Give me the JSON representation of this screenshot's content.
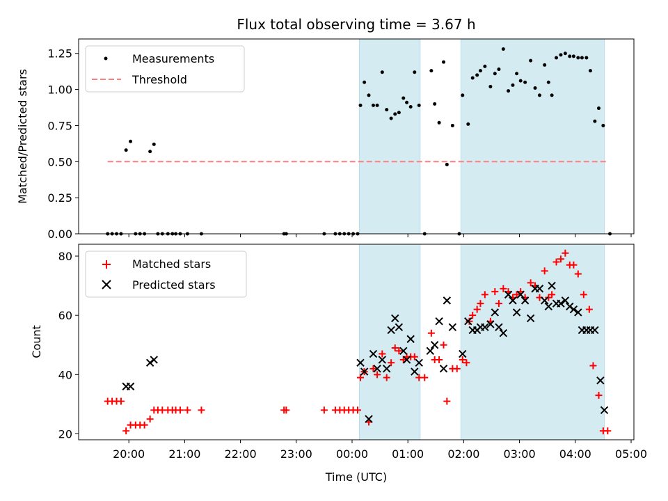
{
  "chart_data": {
    "type": "scatter",
    "title": "Flux total observing time = 3.67 h",
    "x_unit": "hours since 20:00 UTC",
    "xlim": [
      -0.9,
      9.05
    ],
    "xticks": [
      0,
      1,
      2,
      3,
      4,
      5,
      6,
      7,
      8,
      9
    ],
    "xtick_labels": [
      "20:00",
      "21:00",
      "22:00",
      "23:00",
      "00:00",
      "01:00",
      "02:00",
      "03:00",
      "04:00",
      "05:00"
    ],
    "xlabel": "Time (UTC)",
    "shaded_intervals": [
      [
        4.13,
        5.22
      ],
      [
        5.95,
        8.52
      ]
    ],
    "shade_color": "#add8e6",
    "panels": [
      {
        "name": "ratio",
        "ylabel": "Matched/Predicted stars",
        "ylim": [
          0,
          1.35
        ],
        "yticks": [
          0.0,
          0.25,
          0.5,
          0.75,
          1.0,
          1.25
        ],
        "ytick_labels": [
          "0.00",
          "0.25",
          "0.50",
          "0.75",
          "1.00",
          "1.25"
        ],
        "legend": [
          "Measurements",
          "Threshold"
        ],
        "threshold": {
          "value": 0.5,
          "x_range": [
            -0.38,
            8.55
          ],
          "color": "#ff7f7f"
        },
        "series": [
          {
            "name": "Measurements",
            "color": "#000000",
            "marker": "dot",
            "points": [
              [
                -0.38,
                0
              ],
              [
                -0.3,
                0
              ],
              [
                -0.22,
                0
              ],
              [
                -0.14,
                0
              ],
              [
                -0.05,
                0.58
              ],
              [
                0.03,
                0.64
              ],
              [
                0.12,
                0
              ],
              [
                0.2,
                0
              ],
              [
                0.28,
                0
              ],
              [
                0.38,
                0.57
              ],
              [
                0.45,
                0.62
              ],
              [
                0.52,
                0
              ],
              [
                0.6,
                0
              ],
              [
                0.7,
                0
              ],
              [
                0.78,
                0
              ],
              [
                0.84,
                0
              ],
              [
                0.92,
                0
              ],
              [
                1.05,
                0
              ],
              [
                1.3,
                0
              ],
              [
                2.78,
                0
              ],
              [
                2.82,
                0
              ],
              [
                3.5,
                0
              ],
              [
                3.7,
                0
              ],
              [
                3.78,
                0
              ],
              [
                3.86,
                0
              ],
              [
                3.94,
                0
              ],
              [
                4.02,
                0
              ],
              [
                4.1,
                0
              ],
              [
                4.15,
                0.89
              ],
              [
                4.22,
                1.05
              ],
              [
                4.3,
                0.96
              ],
              [
                4.38,
                0.89
              ],
              [
                4.45,
                0.89
              ],
              [
                4.54,
                1.12
              ],
              [
                4.62,
                0.86
              ],
              [
                4.7,
                0.8
              ],
              [
                4.77,
                0.83
              ],
              [
                4.84,
                0.84
              ],
              [
                4.92,
                0.94
              ],
              [
                4.98,
                0.91
              ],
              [
                5.05,
                0.88
              ],
              [
                5.12,
                1.12
              ],
              [
                5.2,
                0.89
              ],
              [
                5.3,
                0
              ],
              [
                5.42,
                1.13
              ],
              [
                5.48,
                0.9
              ],
              [
                5.56,
                0.77
              ],
              [
                5.64,
                1.19
              ],
              [
                5.7,
                0.48
              ],
              [
                5.8,
                0.75
              ],
              [
                5.92,
                0
              ],
              [
                5.98,
                0.96
              ],
              [
                6.08,
                0.76
              ],
              [
                6.16,
                1.08
              ],
              [
                6.24,
                1.1
              ],
              [
                6.3,
                1.13
              ],
              [
                6.38,
                1.16
              ],
              [
                6.48,
                1.02
              ],
              [
                6.56,
                1.11
              ],
              [
                6.63,
                1.14
              ],
              [
                6.71,
                1.28
              ],
              [
                6.8,
                0.99
              ],
              [
                6.88,
                1.03
              ],
              [
                6.95,
                1.11
              ],
              [
                7.02,
                1.06
              ],
              [
                7.1,
                1.05
              ],
              [
                7.2,
                1.2
              ],
              [
                7.28,
                1.01
              ],
              [
                7.36,
                0.96
              ],
              [
                7.45,
                1.17
              ],
              [
                7.52,
                1.05
              ],
              [
                7.58,
                0.96
              ],
              [
                7.66,
                1.22
              ],
              [
                7.74,
                1.24
              ],
              [
                7.82,
                1.25
              ],
              [
                7.9,
                1.23
              ],
              [
                7.97,
                1.23
              ],
              [
                8.05,
                1.22
              ],
              [
                8.12,
                1.22
              ],
              [
                8.2,
                1.22
              ],
              [
                8.27,
                1.13
              ],
              [
                8.35,
                0.78
              ],
              [
                8.42,
                0.87
              ],
              [
                8.5,
                0.75
              ],
              [
                8.62,
                0
              ]
            ]
          }
        ]
      },
      {
        "name": "count",
        "ylabel": "Count",
        "ylim": [
          18,
          84
        ],
        "yticks": [
          20,
          40,
          60,
          80
        ],
        "ytick_labels": [
          "20",
          "40",
          "60",
          "80"
        ],
        "legend": [
          "Matched stars",
          "Predicted stars"
        ],
        "series": [
          {
            "name": "Matched stars",
            "color": "#ff0000",
            "marker": "plus",
            "points": [
              [
                -0.38,
                31
              ],
              [
                -0.3,
                31
              ],
              [
                -0.22,
                31
              ],
              [
                -0.14,
                31
              ],
              [
                -0.05,
                21
              ],
              [
                0.03,
                23
              ],
              [
                0.12,
                23
              ],
              [
                0.2,
                23
              ],
              [
                0.28,
                23
              ],
              [
                0.38,
                25
              ],
              [
                0.45,
                28
              ],
              [
                0.52,
                28
              ],
              [
                0.6,
                28
              ],
              [
                0.7,
                28
              ],
              [
                0.78,
                28
              ],
              [
                0.84,
                28
              ],
              [
                0.92,
                28
              ],
              [
                1.05,
                28
              ],
              [
                1.3,
                28
              ],
              [
                2.78,
                28
              ],
              [
                2.82,
                28
              ],
              [
                3.5,
                28
              ],
              [
                3.7,
                28
              ],
              [
                3.78,
                28
              ],
              [
                3.86,
                28
              ],
              [
                3.94,
                28
              ],
              [
                4.02,
                28
              ],
              [
                4.1,
                28
              ],
              [
                4.15,
                39
              ],
              [
                4.22,
                41
              ],
              [
                4.3,
                24
              ],
              [
                4.38,
                42
              ],
              [
                4.45,
                40
              ],
              [
                4.54,
                47
              ],
              [
                4.62,
                39
              ],
              [
                4.7,
                44
              ],
              [
                4.77,
                49
              ],
              [
                4.84,
                48
              ],
              [
                4.92,
                45
              ],
              [
                4.98,
                46
              ],
              [
                5.05,
                46
              ],
              [
                5.12,
                46
              ],
              [
                5.2,
                39
              ],
              [
                5.3,
                39
              ],
              [
                5.42,
                54
              ],
              [
                5.48,
                45
              ],
              [
                5.56,
                45
              ],
              [
                5.64,
                50
              ],
              [
                5.7,
                31
              ],
              [
                5.8,
                42
              ],
              [
                5.88,
                42
              ],
              [
                5.98,
                45
              ],
              [
                6.05,
                44
              ],
              [
                6.1,
                58
              ],
              [
                6.16,
                60
              ],
              [
                6.24,
                62
              ],
              [
                6.3,
                64
              ],
              [
                6.38,
                67
              ],
              [
                6.48,
                58
              ],
              [
                6.56,
                68
              ],
              [
                6.63,
                64
              ],
              [
                6.71,
                69
              ],
              [
                6.8,
                68
              ],
              [
                6.88,
                66
              ],
              [
                6.95,
                67
              ],
              [
                7.02,
                68
              ],
              [
                7.1,
                66
              ],
              [
                7.2,
                71
              ],
              [
                7.28,
                70
              ],
              [
                7.36,
                66
              ],
              [
                7.45,
                75
              ],
              [
                7.52,
                66
              ],
              [
                7.58,
                67
              ],
              [
                7.66,
                78
              ],
              [
                7.74,
                79
              ],
              [
                7.82,
                81
              ],
              [
                7.9,
                77
              ],
              [
                7.97,
                77
              ],
              [
                8.05,
                74
              ],
              [
                8.15,
                67
              ],
              [
                8.25,
                62
              ],
              [
                8.32,
                43
              ],
              [
                8.42,
                33
              ],
              [
                8.5,
                21
              ],
              [
                8.58,
                21
              ]
            ]
          },
          {
            "name": "Predicted stars",
            "color": "#000000",
            "marker": "x",
            "points": [
              [
                -0.05,
                36
              ],
              [
                0.03,
                36
              ],
              [
                0.38,
                44
              ],
              [
                0.45,
                45
              ],
              [
                4.15,
                44
              ],
              [
                4.22,
                41
              ],
              [
                4.3,
                25
              ],
              [
                4.38,
                47
              ],
              [
                4.45,
                42
              ],
              [
                4.54,
                45
              ],
              [
                4.62,
                42
              ],
              [
                4.7,
                55
              ],
              [
                4.77,
                59
              ],
              [
                4.84,
                56
              ],
              [
                4.92,
                48
              ],
              [
                4.98,
                45
              ],
              [
                5.05,
                52
              ],
              [
                5.12,
                41
              ],
              [
                5.2,
                44
              ],
              [
                5.4,
                48
              ],
              [
                5.48,
                50
              ],
              [
                5.56,
                58
              ],
              [
                5.64,
                42
              ],
              [
                5.7,
                65
              ],
              [
                5.8,
                56
              ],
              [
                5.98,
                47
              ],
              [
                6.08,
                58
              ],
              [
                6.16,
                55
              ],
              [
                6.24,
                55
              ],
              [
                6.3,
                56
              ],
              [
                6.38,
                56
              ],
              [
                6.48,
                57
              ],
              [
                6.56,
                61
              ],
              [
                6.63,
                56
              ],
              [
                6.71,
                54
              ],
              [
                6.8,
                67
              ],
              [
                6.88,
                65
              ],
              [
                6.95,
                61
              ],
              [
                7.02,
                67
              ],
              [
                7.1,
                65
              ],
              [
                7.2,
                59
              ],
              [
                7.28,
                69
              ],
              [
                7.36,
                69
              ],
              [
                7.45,
                65
              ],
              [
                7.52,
                63
              ],
              [
                7.58,
                70
              ],
              [
                7.66,
                64
              ],
              [
                7.74,
                64
              ],
              [
                7.82,
                65
              ],
              [
                7.9,
                63
              ],
              [
                7.97,
                62
              ],
              [
                8.05,
                61
              ],
              [
                8.12,
                55
              ],
              [
                8.2,
                55
              ],
              [
                8.27,
                55
              ],
              [
                8.35,
                55
              ],
              [
                8.45,
                38
              ],
              [
                8.52,
                28
              ]
            ]
          }
        ]
      }
    ]
  }
}
